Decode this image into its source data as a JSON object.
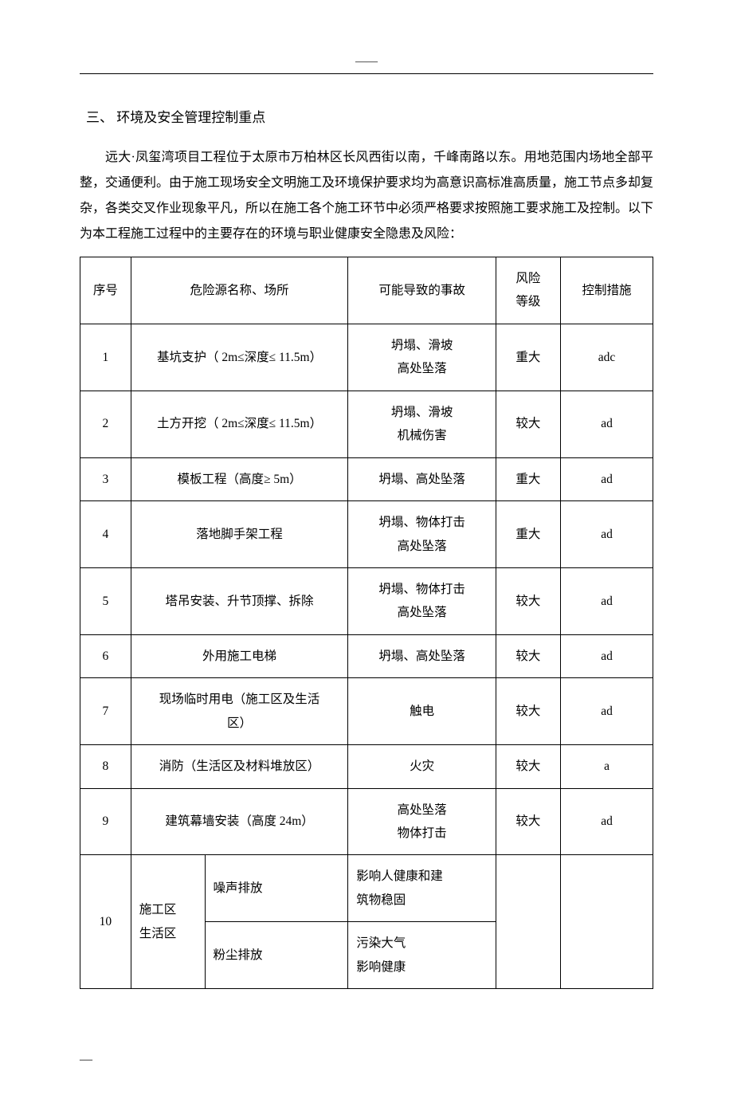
{
  "header_marker": "——",
  "section_title": "三、 环境及安全管理控制重点",
  "body_paragraph": "远大·凤玺湾项目工程位于太原市万柏林区长风西街以南，千峰南路以东。用地范围内场地全部平整，交通便利。由于施工现场安全文明施工及环境保护要求均为高意识高标准高质量，施工节点多却复杂，各类交叉作业现象平凡，所以在施工各个施工环节中必须严格要求按照施工要求施工及控制。以下为本工程施工过程中的主要存在的环境与职业健康安全隐患及风险：",
  "table": {
    "headers": {
      "seq": "序号",
      "name": "危险源名称、场所",
      "accident": "可能导致的事故",
      "level": "风险\n等级",
      "control": "控制措施"
    },
    "rows": [
      {
        "seq": "1",
        "name": "基坑支护（ 2m≤深度≤ 11.5m）",
        "accident": "坍塌、滑坡\n高处坠落",
        "level": "重大",
        "control": "adc"
      },
      {
        "seq": "2",
        "name": "土方开挖（ 2m≤深度≤ 11.5m）",
        "accident": "坍塌、滑坡\n机械伤害",
        "level": "较大",
        "control": "ad"
      },
      {
        "seq": "3",
        "name": "模板工程（高度≥ 5m）",
        "accident": "坍塌、高处坠落",
        "level": "重大",
        "control": "ad"
      },
      {
        "seq": "4",
        "name": "落地脚手架工程",
        "accident": "坍塌、物体打击\n高处坠落",
        "level": "重大",
        "control": "ad"
      },
      {
        "seq": "5",
        "name": "塔吊安装、升节顶撑、拆除",
        "accident": "坍塌、物体打击\n高处坠落",
        "level": "较大",
        "control": "ad"
      },
      {
        "seq": "6",
        "name": "外用施工电梯",
        "accident": "坍塌、高处坠落",
        "level": "较大",
        "control": "ad"
      },
      {
        "seq": "7",
        "name": "现场临时用电（施工区及生活\n区）",
        "accident": "触电",
        "level": "较大",
        "control": "ad"
      },
      {
        "seq": "8",
        "name": "消防（生活区及材料堆放区）",
        "accident": "火灾",
        "level": "较大",
        "control": "a"
      },
      {
        "seq": "9",
        "name": "建筑幕墙安装（高度 24m）",
        "accident": "高处坠落\n物体打击",
        "level": "较大",
        "control": "ad"
      }
    ],
    "row10": {
      "seq": "10",
      "name_main": "施工区\n生活区",
      "sub1_name": "噪声排放",
      "sub1_accident": "影响人健康和建\n筑物稳固",
      "sub2_name": "粉尘排放",
      "sub2_accident": "污染大气\n影响健康"
    }
  },
  "footer_marker": "—"
}
